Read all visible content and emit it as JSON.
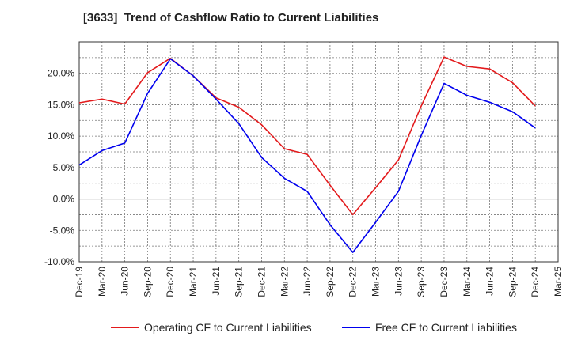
{
  "chart_data": {
    "type": "line",
    "title": "[3633]  Trend of Cashflow Ratio to Current Liabilities",
    "xlabel": "",
    "ylabel": "",
    "categories": [
      "Dec-19",
      "Mar-20",
      "Jun-20",
      "Sep-20",
      "Dec-20",
      "Mar-21",
      "Jun-21",
      "Sep-21",
      "Dec-21",
      "Mar-22",
      "Jun-22",
      "Sep-22",
      "Dec-22",
      "Mar-23",
      "Jun-23",
      "Sep-23",
      "Dec-23",
      "Mar-24",
      "Jun-24",
      "Sep-24",
      "Dec-24",
      "Mar-25"
    ],
    "ylim": [
      -10,
      25
    ],
    "yticks": [
      -10,
      -5,
      0,
      5,
      10,
      15,
      20
    ],
    "ytick_labels": [
      "-10.0%",
      "-5.0%",
      "0.0%",
      "5.0%",
      "10.0%",
      "15.0%",
      "20.0%"
    ],
    "grid": true,
    "legend_position": "bottom",
    "series": [
      {
        "name": "Operating CF to Current Liabilities",
        "color": "#e31a1c",
        "values": [
          15.3,
          15.9,
          15.1,
          20.1,
          22.4,
          19.6,
          16.1,
          14.6,
          11.8,
          8.0,
          7.1,
          2.2,
          -2.5,
          1.8,
          6.2,
          14.8,
          22.6,
          21.1,
          20.7,
          18.5,
          14.8,
          null
        ]
      },
      {
        "name": "Free CF to Current Liabilities",
        "color": "#0000ee",
        "values": [
          5.4,
          7.7,
          8.9,
          16.8,
          22.3,
          19.6,
          15.9,
          12.0,
          6.6,
          3.3,
          1.2,
          -4.1,
          -8.5,
          -3.7,
          1.2,
          10.1,
          18.4,
          16.5,
          15.4,
          13.9,
          11.3,
          null
        ]
      }
    ]
  }
}
